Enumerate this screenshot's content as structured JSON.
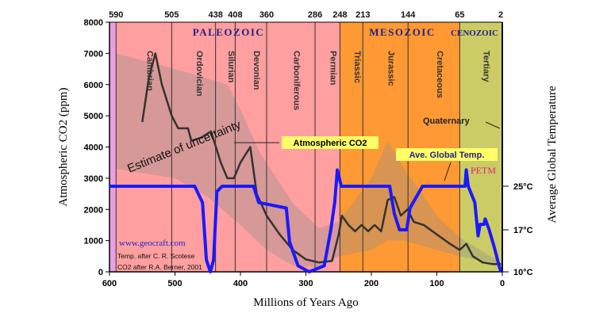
{
  "chart_data": {
    "type": "line",
    "xlabel": "Millions of Years Ago",
    "ylabel": "Atmospheric CO2 (ppm)",
    "y2label": "Average Global Temperature",
    "xlim": [
      600,
      0
    ],
    "ylim": [
      0,
      8000
    ],
    "x_ticks": [
      600,
      500,
      400,
      300,
      200,
      100,
      0
    ],
    "y_ticks": [
      0,
      1000,
      2000,
      3000,
      4000,
      5000,
      6000,
      7000,
      8000
    ],
    "y2_ticks": [
      {
        "value": 25,
        "label": "25°C"
      },
      {
        "value": 17,
        "label": "17°C"
      },
      {
        "value": 10,
        "label": "10°C"
      }
    ],
    "top_ticks": [
      590,
      505,
      438,
      408,
      360,
      286,
      248,
      213,
      144,
      65,
      2
    ],
    "eras": [
      {
        "name": "PALEOZOIC",
        "from": 590,
        "to": 248
      },
      {
        "name": "MESOZOIC",
        "from": 248,
        "to": 65
      },
      {
        "name": "CENOZOIC",
        "from": 65,
        "to": 0
      }
    ],
    "periods": [
      {
        "name": "",
        "from": 600,
        "to": 590,
        "color": "#e8a0e0"
      },
      {
        "name": "Cambrian",
        "from": 590,
        "to": 505,
        "color": "#ff9f9f"
      },
      {
        "name": "Ordovician",
        "from": 505,
        "to": 438,
        "color": "#ff9f9f"
      },
      {
        "name": "Silurian",
        "from": 438,
        "to": 408,
        "color": "#ff9f9f"
      },
      {
        "name": "Devonian",
        "from": 408,
        "to": 360,
        "color": "#ff9f9f"
      },
      {
        "name": "Carboniferous",
        "from": 360,
        "to": 286,
        "color": "#ff9f9f"
      },
      {
        "name": "Permian",
        "from": 286,
        "to": 248,
        "color": "#ff9f9f"
      },
      {
        "name": "Triassic",
        "from": 248,
        "to": 213,
        "color": "#ff9933"
      },
      {
        "name": "Jurassic",
        "from": 213,
        "to": 144,
        "color": "#ff9933"
      },
      {
        "name": "Cretaceous",
        "from": 144,
        "to": 65,
        "color": "#ff9933"
      },
      {
        "name": "Tertiary",
        "from": 65,
        "to": 2,
        "color": "#cccc66"
      }
    ],
    "series": [
      {
        "name": "Atmospheric CO2",
        "color": "#333333",
        "axis": "left",
        "points": [
          [
            550,
            4800
          ],
          [
            540,
            6200
          ],
          [
            530,
            7000
          ],
          [
            520,
            6000
          ],
          [
            505,
            5000
          ],
          [
            495,
            4600
          ],
          [
            480,
            4600
          ],
          [
            475,
            4200
          ],
          [
            460,
            4300
          ],
          [
            445,
            4500
          ],
          [
            430,
            3500
          ],
          [
            420,
            3000
          ],
          [
            410,
            3000
          ],
          [
            400,
            3500
          ],
          [
            385,
            4000
          ],
          [
            375,
            2500
          ],
          [
            360,
            1800
          ],
          [
            340,
            1200
          ],
          [
            320,
            700
          ],
          [
            300,
            400
          ],
          [
            280,
            300
          ],
          [
            260,
            350
          ],
          [
            250,
            1200
          ],
          [
            245,
            1800
          ],
          [
            235,
            1500
          ],
          [
            225,
            1300
          ],
          [
            215,
            1500
          ],
          [
            205,
            1300
          ],
          [
            195,
            1500
          ],
          [
            185,
            1300
          ],
          [
            175,
            2300
          ],
          [
            165,
            2400
          ],
          [
            155,
            1800
          ],
          [
            145,
            2000
          ],
          [
            135,
            1600
          ],
          [
            120,
            1500
          ],
          [
            100,
            1200
          ],
          [
            80,
            900
          ],
          [
            65,
            700
          ],
          [
            55,
            900
          ],
          [
            45,
            500
          ],
          [
            30,
            300
          ],
          [
            15,
            250
          ],
          [
            2,
            250
          ]
        ]
      },
      {
        "name": "Ave. Global Temp.",
        "color": "#1a1aff",
        "axis": "right",
        "points": [
          [
            600,
            25
          ],
          [
            520,
            25
          ],
          [
            470,
            25
          ],
          [
            458,
            22
          ],
          [
            452,
            12
          ],
          [
            446,
            10
          ],
          [
            441,
            12
          ],
          [
            436,
            24
          ],
          [
            428,
            25
          ],
          [
            380,
            25
          ],
          [
            372,
            22
          ],
          [
            330,
            21
          ],
          [
            325,
            15
          ],
          [
            312,
            11
          ],
          [
            295,
            10
          ],
          [
            272,
            11
          ],
          [
            262,
            17
          ],
          [
            256,
            22
          ],
          [
            252,
            28
          ],
          [
            246,
            25
          ],
          [
            190,
            25
          ],
          [
            172,
            25
          ],
          [
            165,
            20
          ],
          [
            157,
            17
          ],
          [
            146,
            17
          ],
          [
            141,
            21
          ],
          [
            122,
            25
          ],
          [
            100,
            25
          ],
          [
            65,
            25
          ],
          [
            57,
            25
          ],
          [
            55,
            28
          ],
          [
            52,
            25
          ],
          [
            42,
            22
          ],
          [
            37,
            16
          ],
          [
            34,
            18
          ],
          [
            28,
            18
          ],
          [
            26,
            19
          ],
          [
            20,
            17
          ],
          [
            12,
            14
          ],
          [
            5,
            11
          ],
          [
            2,
            10
          ]
        ]
      }
    ],
    "uncertainty_band": {
      "label": "Estimate of uncertainty",
      "upper": [
        [
          590,
          7000
        ],
        [
          500,
          6500
        ],
        [
          420,
          6000
        ],
        [
          400,
          5200
        ],
        [
          370,
          3800
        ],
        [
          320,
          2200
        ],
        [
          280,
          1400
        ],
        [
          250,
          1600
        ],
        [
          200,
          3000
        ],
        [
          175,
          4200
        ],
        [
          150,
          3300
        ],
        [
          100,
          1800
        ],
        [
          65,
          1100
        ],
        [
          2,
          300
        ]
      ],
      "lower": [
        [
          590,
          3300
        ],
        [
          500,
          3000
        ],
        [
          450,
          2400
        ],
        [
          400,
          1500
        ],
        [
          360,
          700
        ],
        [
          320,
          200
        ],
        [
          280,
          150
        ],
        [
          250,
          500
        ],
        [
          200,
          700
        ],
        [
          175,
          1000
        ],
        [
          150,
          1000
        ],
        [
          100,
          700
        ],
        [
          65,
          500
        ],
        [
          2,
          200
        ]
      ]
    },
    "annotations": {
      "co2_label": "Atmospheric CO2",
      "temp_label": "Ave. Global Temp.",
      "petm": "PETM",
      "quaternary": "Quaternary",
      "website": "www.geocraft.com",
      "credit1": "Temp. after C. R. Scotese",
      "credit2": "CO2 after R.A. Berner, 2001"
    }
  }
}
